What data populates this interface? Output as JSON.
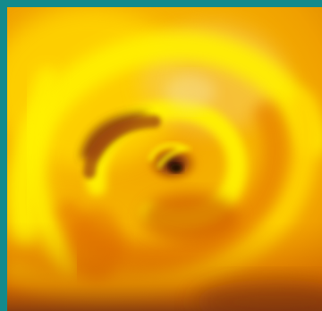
{
  "image": {
    "subject": "swirl-vortex",
    "colors": {
      "frame": "#138a8c",
      "bright_yellow": "#fff100",
      "yellow": "#ffd400",
      "orange": "#f0a000",
      "deep_orange": "#d86a00",
      "brown": "#8a3a10",
      "dark": "#3a1a0a",
      "cream": "#f7e090"
    }
  }
}
